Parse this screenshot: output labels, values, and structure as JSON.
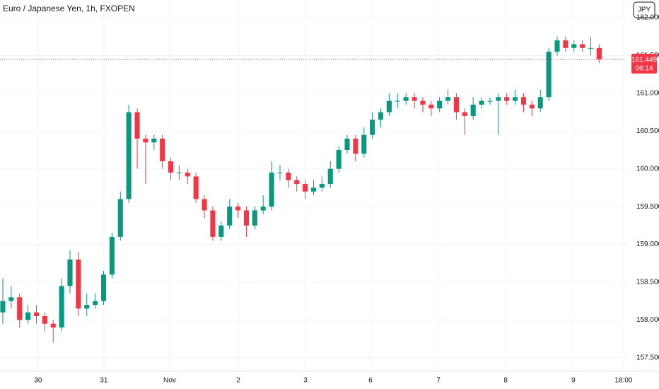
{
  "chart_data": {
    "type": "candlestick",
    "title": "Euro / Japanese Yen, 1h, FXOPEN",
    "currency": "JPY",
    "up_color": "#089981",
    "down_color": "#f23645",
    "grid": true,
    "last_price": 161.449,
    "countdown": "06:14",
    "xlim": [
      0,
      223.5
    ],
    "ylim": [
      157.32,
      162.235
    ],
    "xticks": [
      {
        "value": 13.6,
        "label": "30"
      },
      {
        "value": 37.1,
        "label": "31"
      },
      {
        "value": 60.6,
        "label": "Nov"
      },
      {
        "value": 85.1,
        "label": "2"
      },
      {
        "value": 109.1,
        "label": "3"
      },
      {
        "value": 132.3,
        "label": "6"
      },
      {
        "value": 156.6,
        "label": "7"
      },
      {
        "value": 180.6,
        "label": "8"
      },
      {
        "value": 204.8,
        "label": "9"
      },
      {
        "value": 222.7,
        "label": "18:00"
      }
    ],
    "yticks": [
      {
        "value": 157.5,
        "label": "157.500"
      },
      {
        "value": 158,
        "label": "158.000"
      },
      {
        "value": 158.5,
        "label": "158.500"
      },
      {
        "value": 159,
        "label": "159.000"
      },
      {
        "value": 159.5,
        "label": "159.500"
      },
      {
        "value": 160,
        "label": "160.000"
      },
      {
        "value": 160.5,
        "label": "160.500"
      },
      {
        "value": 161,
        "label": "161.000"
      },
      {
        "value": 161.5,
        "label": "161.500"
      },
      {
        "value": 162,
        "label": "162.000"
      }
    ],
    "x": [
      1,
      4,
      7,
      10,
      13,
      16,
      19,
      22,
      25,
      28,
      31,
      34,
      37,
      40,
      43,
      46,
      49,
      52,
      55,
      58,
      61,
      64,
      67,
      70,
      73,
      76,
      79,
      82,
      85,
      88,
      91,
      94,
      97,
      100,
      103,
      106,
      109,
      112,
      115,
      118,
      121,
      124,
      127,
      130,
      133,
      136,
      139,
      142,
      145,
      148,
      151,
      154,
      157,
      160,
      163,
      166,
      169,
      172,
      175,
      178,
      181,
      184,
      187,
      190,
      193,
      196,
      199,
      202,
      205,
      208,
      211,
      214
    ],
    "open": [
      158.1,
      158.25,
      158.3,
      158.0,
      158.1,
      158.05,
      157.95,
      157.9,
      158.45,
      158.8,
      158.15,
      158.2,
      158.25,
      158.6,
      159.1,
      159.6,
      160.75,
      160.4,
      160.35,
      160.4,
      160.1,
      159.95,
      159.95,
      159.9,
      159.6,
      159.45,
      159.1,
      159.25,
      159.5,
      159.45,
      159.25,
      159.45,
      159.5,
      159.95,
      159.95,
      159.85,
      159.8,
      159.7,
      159.75,
      159.8,
      160.0,
      160.25,
      160.4,
      160.2,
      160.45,
      160.65,
      160.75,
      160.9,
      160.9,
      160.95,
      160.9,
      160.85,
      160.8,
      160.9,
      160.95,
      160.75,
      160.7,
      160.85,
      160.9,
      160.9,
      160.95,
      160.9,
      160.95,
      160.85,
      160.8,
      160.95,
      161.55,
      161.7,
      161.6,
      161.65,
      161.6,
      161.6
    ],
    "high": [
      158.55,
      158.45,
      158.35,
      158.2,
      158.2,
      158.1,
      158.0,
      158.55,
      158.92,
      158.9,
      158.35,
      158.35,
      158.65,
      159.15,
      159.7,
      160.85,
      160.8,
      160.45,
      160.45,
      160.45,
      160.15,
      160.05,
      160.0,
      159.95,
      159.65,
      159.5,
      159.3,
      159.6,
      159.55,
      159.5,
      159.5,
      159.65,
      160.1,
      160.05,
      160.0,
      159.9,
      159.85,
      159.85,
      159.9,
      160.1,
      160.3,
      160.45,
      160.45,
      160.55,
      160.75,
      160.8,
      161.0,
      161.0,
      161.0,
      161.0,
      160.95,
      160.9,
      160.95,
      161.05,
      161.0,
      160.8,
      160.95,
      160.95,
      160.95,
      161.0,
      161.0,
      161.05,
      161.0,
      160.9,
      161.05,
      161.6,
      161.75,
      161.75,
      161.7,
      161.7,
      161.75,
      161.65
    ],
    "low": [
      157.95,
      158.15,
      157.9,
      157.95,
      157.95,
      157.85,
      157.7,
      157.85,
      158.35,
      158.05,
      158.05,
      158.15,
      158.2,
      158.55,
      159.05,
      159.55,
      160.0,
      159.8,
      160.25,
      160.0,
      159.85,
      159.85,
      159.8,
      159.55,
      159.35,
      159.05,
      159.05,
      159.2,
      159.35,
      159.1,
      159.2,
      159.4,
      159.45,
      159.85,
      159.75,
      159.7,
      159.6,
      159.65,
      159.7,
      159.75,
      159.95,
      160.2,
      160.1,
      160.15,
      160.4,
      160.55,
      160.7,
      160.8,
      160.85,
      160.8,
      160.75,
      160.7,
      160.75,
      160.85,
      160.65,
      160.45,
      160.65,
      160.8,
      160.85,
      160.45,
      160.85,
      160.85,
      160.75,
      160.7,
      160.75,
      160.9,
      161.5,
      161.55,
      161.55,
      161.55,
      161.5,
      161.4
    ],
    "close": [
      158.25,
      158.3,
      158.0,
      158.1,
      158.05,
      157.95,
      157.9,
      158.45,
      158.8,
      158.15,
      158.2,
      158.25,
      158.6,
      159.1,
      159.6,
      160.75,
      160.4,
      160.35,
      160.4,
      160.1,
      159.95,
      159.95,
      159.9,
      159.6,
      159.45,
      159.1,
      159.25,
      159.5,
      159.45,
      159.25,
      159.45,
      159.5,
      159.95,
      159.95,
      159.85,
      159.8,
      159.7,
      159.75,
      159.8,
      160.0,
      160.25,
      160.4,
      160.2,
      160.45,
      160.65,
      160.75,
      160.9,
      160.9,
      160.95,
      160.9,
      160.85,
      160.8,
      160.9,
      160.95,
      160.75,
      160.7,
      160.85,
      160.9,
      160.9,
      160.95,
      160.9,
      160.95,
      160.85,
      160.8,
      160.95,
      161.55,
      161.7,
      161.6,
      161.65,
      161.6,
      161.6,
      161.45
    ]
  }
}
